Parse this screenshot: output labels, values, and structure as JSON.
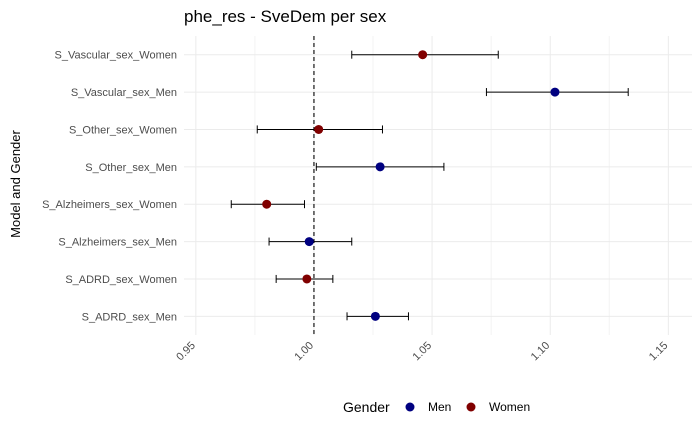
{
  "chart_data": {
    "type": "scatter",
    "subtype": "forest-plot",
    "title": "phe_res - SveDem per sex",
    "xlabel": "",
    "ylabel": "Model and Gender",
    "xlim": [
      0.945,
      1.16
    ],
    "x_ticks": [
      0.95,
      1.0,
      1.05,
      1.1,
      1.15
    ],
    "x_tick_labels": [
      "0.95",
      "1.00",
      "1.05",
      "1.10",
      "1.15"
    ],
    "reference_line": 1.0,
    "grid": true,
    "legend": {
      "title": "Gender",
      "placement": "bottom",
      "entries": [
        {
          "label": "Men",
          "color": "#000080"
        },
        {
          "label": "Women",
          "color": "#800000"
        }
      ]
    },
    "categories": [
      "S_Vascular_sex_Women",
      "S_Vascular_sex_Men",
      "S_Other_sex_Women",
      "S_Other_sex_Men",
      "S_Alzheimers_sex_Women",
      "S_Alzheimers_sex_Men",
      "S_ADRD_sex_Women",
      "S_ADRD_sex_Men"
    ],
    "points": [
      {
        "category": "S_Vascular_sex_Women",
        "gender": "Women",
        "estimate": 1.046,
        "lower": 1.016,
        "upper": 1.078
      },
      {
        "category": "S_Vascular_sex_Men",
        "gender": "Men",
        "estimate": 1.102,
        "lower": 1.073,
        "upper": 1.133
      },
      {
        "category": "S_Other_sex_Women",
        "gender": "Women",
        "estimate": 1.002,
        "lower": 0.976,
        "upper": 1.029
      },
      {
        "category": "S_Other_sex_Men",
        "gender": "Men",
        "estimate": 1.028,
        "lower": 1.001,
        "upper": 1.055
      },
      {
        "category": "S_Alzheimers_sex_Women",
        "gender": "Women",
        "estimate": 0.98,
        "lower": 0.965,
        "upper": 0.996
      },
      {
        "category": "S_Alzheimers_sex_Men",
        "gender": "Men",
        "estimate": 0.998,
        "lower": 0.981,
        "upper": 1.016
      },
      {
        "category": "S_ADRD_sex_Women",
        "gender": "Women",
        "estimate": 0.997,
        "lower": 0.984,
        "upper": 1.008
      },
      {
        "category": "S_ADRD_sex_Men",
        "gender": "Men",
        "estimate": 1.026,
        "lower": 1.014,
        "upper": 1.04
      }
    ]
  }
}
